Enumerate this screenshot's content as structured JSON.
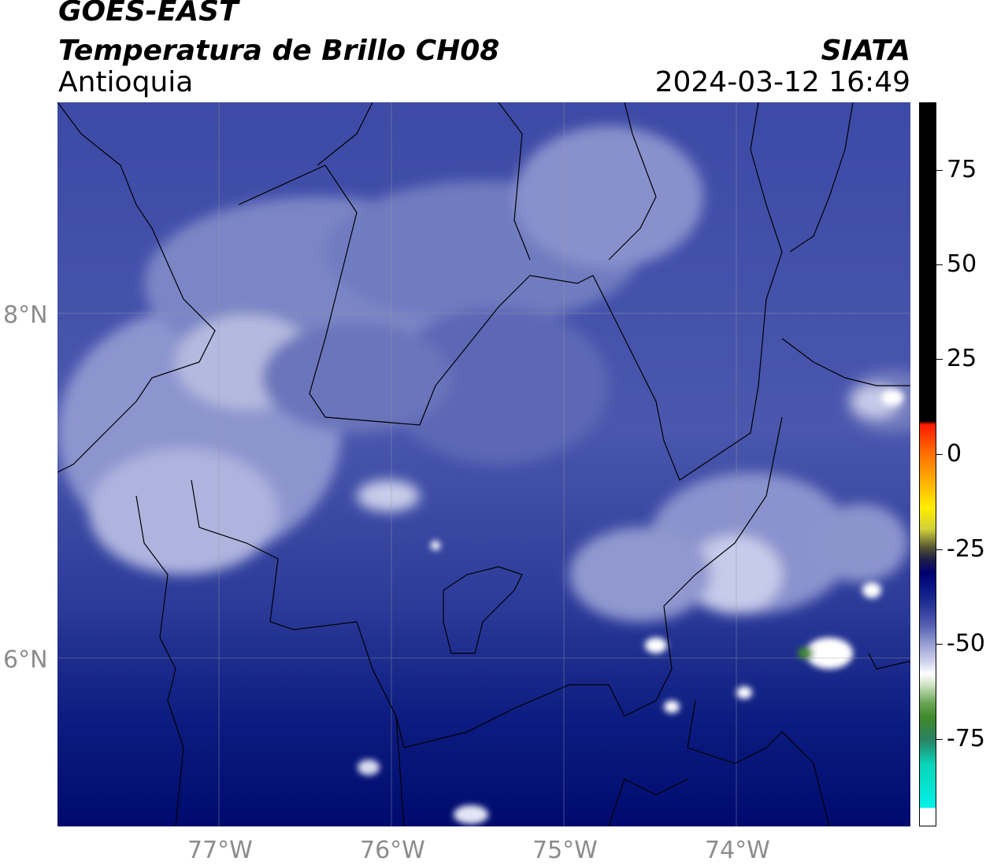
{
  "header": {
    "satellite": "GOES-EAST",
    "product": "Temperatura de Brillo CH08",
    "region": "Antioquia",
    "organization": "SIATA",
    "datetime": "2024-03-12 16:49"
  },
  "map": {
    "lon_ticks": [
      "77°W",
      "76°W",
      "75°W",
      "74°W"
    ],
    "lat_ticks": [
      "8°N",
      "6°N"
    ]
  },
  "colorbar": {
    "ticks": [
      "75",
      "50",
      "25",
      "0",
      "-25",
      "-50",
      "-75"
    ],
    "colors": {
      "warm_black": "#000000",
      "red": "#ff1a00",
      "orange": "#ff9900",
      "yellow": "#ffee00",
      "dark_olive": "#333322",
      "navy": "#000070",
      "blue": "#2d3a9a",
      "lavender": "#9aa2d4",
      "white": "#ffffff",
      "green": "#3f8a2a",
      "teal": "#0ad4b8",
      "cyan": "#00f0e8"
    }
  }
}
